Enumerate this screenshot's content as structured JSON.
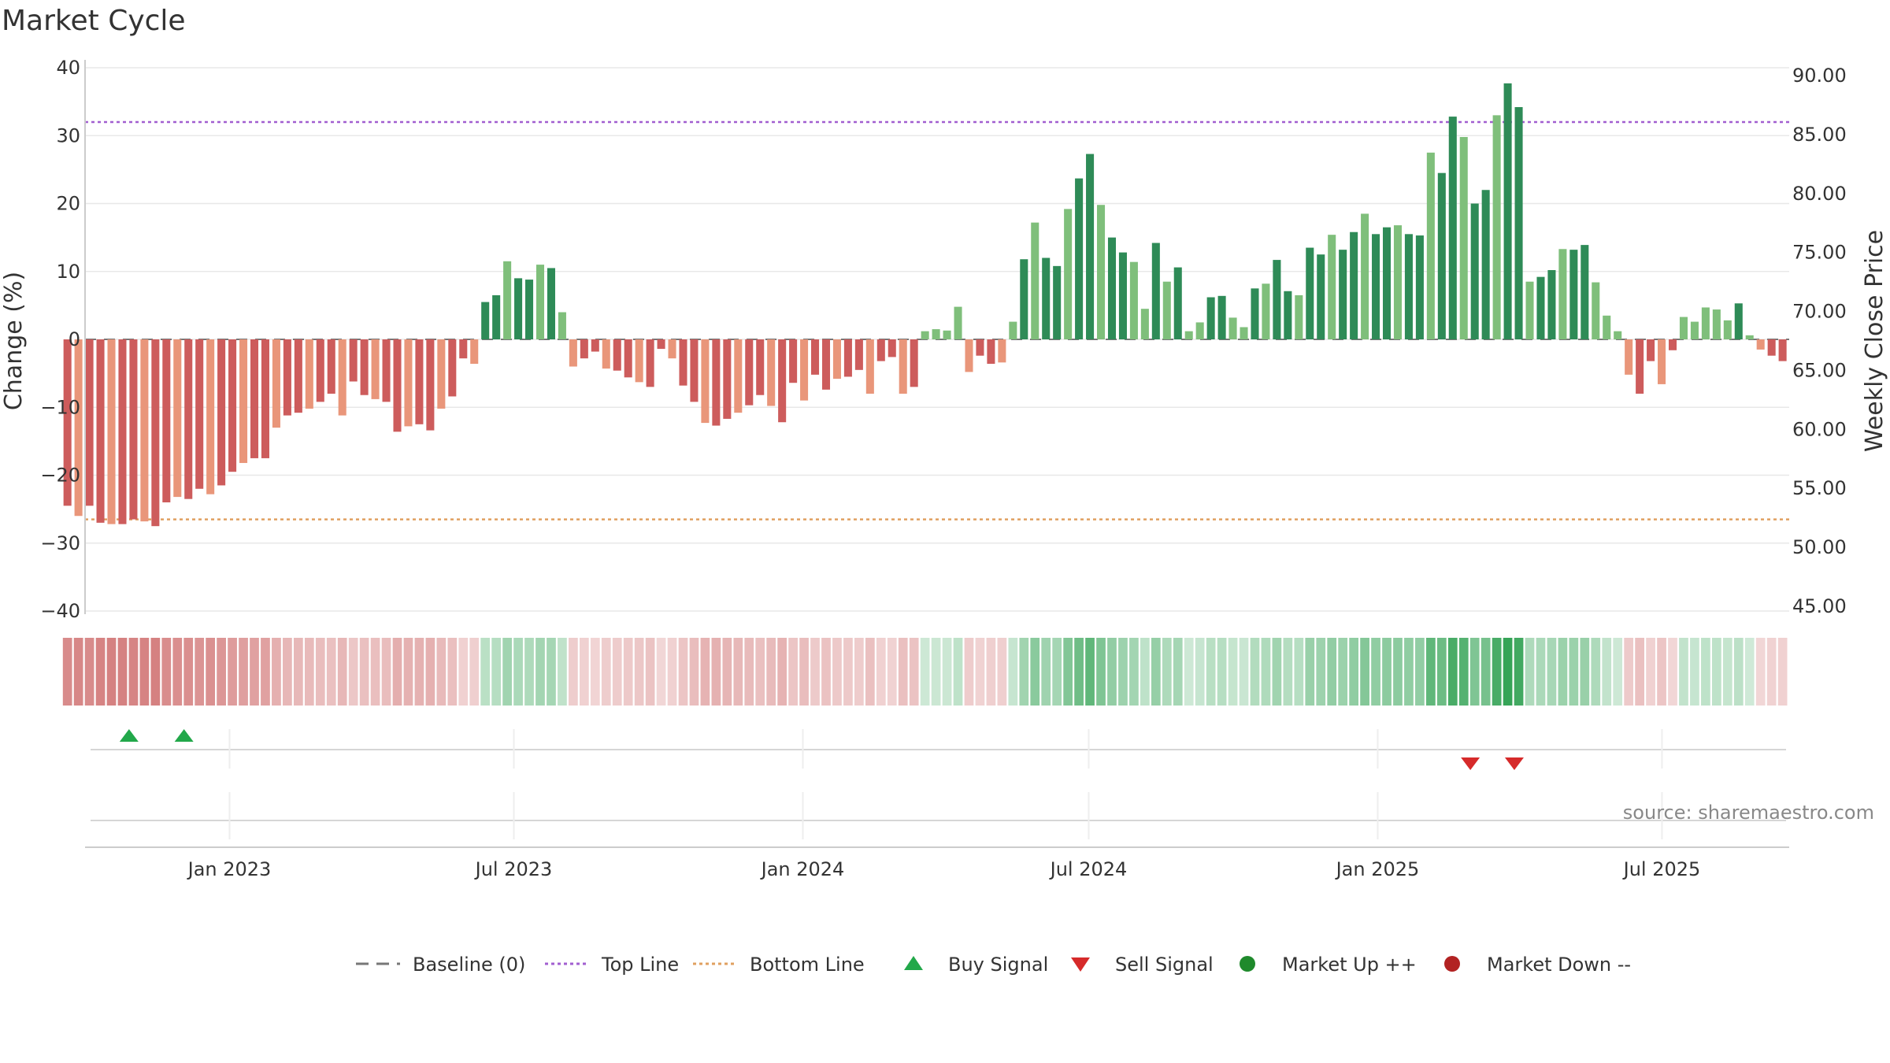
{
  "chart_data": {
    "type": "bar",
    "title": "Market Cycle",
    "ylabel": "Change (%)",
    "y2label": "Weekly Close Price",
    "ylim": [
      -40,
      40
    ],
    "y_ticks": [
      40,
      30,
      20,
      10,
      0,
      -10,
      -20,
      -30,
      -40
    ],
    "y_tick_labels": [
      "40",
      "30",
      "20",
      "10",
      "0",
      "−10",
      "−20",
      "−30",
      "−40"
    ],
    "y2lim": [
      45,
      91
    ],
    "y2_ticks": [
      90,
      85,
      80,
      75,
      70,
      65,
      60,
      55,
      50,
      45
    ],
    "y2_tick_labels": [
      "90.00",
      "85.00",
      "80.00",
      "75.00",
      "70.00",
      "65.00",
      "60.00",
      "55.00",
      "50.00",
      "45.00"
    ],
    "x_start": "2022-10-01",
    "x_end": "2025-09-20",
    "x_ticks": [
      {
        "date": "2023-01-01",
        "label": "Jan 2023"
      },
      {
        "date": "2023-07-01",
        "label": "Jul 2023"
      },
      {
        "date": "2024-01-01",
        "label": "Jan 2024"
      },
      {
        "date": "2024-07-01",
        "label": "Jul 2024"
      },
      {
        "date": "2025-01-01",
        "label": "Jan 2025"
      },
      {
        "date": "2025-07-01",
        "label": "Jul 2025"
      }
    ],
    "first_week": "2022-10-08",
    "top_line": 32,
    "bottom_line": -26.5,
    "baseline": 0,
    "grid": true,
    "legend_position": "bottom-center",
    "values": [
      -24.5,
      -26,
      -24.5,
      -27,
      -27.2,
      -27.2,
      -26.5,
      -26.8,
      -27.5,
      -24,
      -23.2,
      -23.5,
      -22,
      -22.8,
      -21.5,
      -19.5,
      -18.2,
      -17.5,
      -17.5,
      -13,
      -11.2,
      -10.8,
      -10.2,
      -9.2,
      -8,
      -11.2,
      -6.2,
      -8.2,
      -8.8,
      -9.2,
      -13.6,
      -12.8,
      -12.5,
      -13.4,
      -10.2,
      -8.4,
      -2.8,
      -3.6,
      5.5,
      6.5,
      11.5,
      9,
      8.8,
      11,
      10.5,
      4,
      -4,
      -2.8,
      -1.8,
      -4.3,
      -4.6,
      -5.6,
      -6.3,
      -7,
      -1.4,
      -2.8,
      -6.8,
      -9.2,
      -12.3,
      -12.7,
      -11.7,
      -10.8,
      -9.7,
      -8.2,
      -9.8,
      -12.2,
      -6.4,
      -9,
      -5.2,
      -7.4,
      -5.8,
      -5.5,
      -4.5,
      -8,
      -3.2,
      -2.6,
      -8,
      -7,
      1.2,
      1.5,
      1.3,
      4.8,
      -4.8,
      -2.4,
      -3.6,
      -3.4,
      2.6,
      11.8,
      17.2,
      12,
      10.8,
      19.2,
      23.7,
      27.3,
      19.8,
      15,
      12.8,
      11.4,
      4.5,
      14.2,
      8.5,
      10.6,
      1.2,
      2.5,
      6.2,
      6.4,
      3.2,
      1.8,
      7.5,
      8.2,
      11.7,
      7.1,
      6.5,
      13.5,
      12.5,
      15.4,
      13.2,
      15.8,
      18.5,
      15.5,
      16.5,
      16.8,
      15.5,
      15.3,
      27.5,
      24.5,
      32.8,
      29.8,
      20,
      22,
      33,
      37.7,
      34.2,
      8.5,
      9.2,
      10.2,
      13.3,
      13.2,
      13.9,
      8.4,
      3.5,
      1.2,
      -5.2,
      -8,
      -3.2,
      -6.6,
      -1.6,
      3.3,
      2.6,
      4.7,
      4.4,
      2.8,
      5.3,
      0.6,
      -1.5,
      -2.4,
      -3.2
    ],
    "buy_signals": [
      "2022-10-29",
      "2022-12-03"
    ],
    "sell_signals": [
      "2025-03-01",
      "2025-03-29"
    ],
    "cycle_strip_note": "",
    "legend": [
      {
        "name": "Baseline (0)",
        "symbol": "dash-line",
        "color": "#777777"
      },
      {
        "name": "Top Line",
        "symbol": "dot-line",
        "color": "#a25fd0"
      },
      {
        "name": "Bottom Line",
        "symbol": "dot-line",
        "color": "#e0a060"
      },
      {
        "name": "Buy Signal",
        "symbol": "triangle-up",
        "color": "#22a84a"
      },
      {
        "name": "Sell Signal",
        "symbol": "triangle-down",
        "color": "#d62a2a"
      },
      {
        "name": "Market Up ++",
        "symbol": "circle",
        "color": "#1f8a2c"
      },
      {
        "name": "Market Down --",
        "symbol": "circle",
        "color": "#b22222"
      }
    ],
    "source": "source: sharemaestro.com"
  },
  "colors": {
    "dark_red": "#cd5c5c",
    "light_red": "#e9967a",
    "dark_green": "#2e8b57",
    "light_green": "#7fbf7b",
    "grid": "#e8e8e8"
  }
}
